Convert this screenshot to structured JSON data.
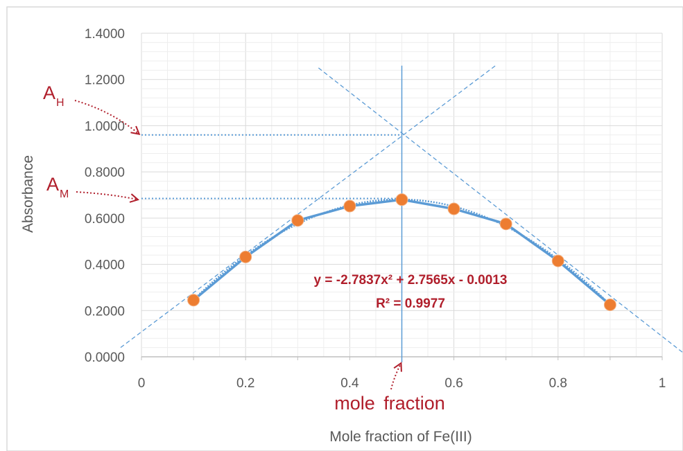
{
  "chart_data": {
    "type": "scatter",
    "xlabel": "Mole fraction of Fe(III)",
    "ylabel": "Absorbance",
    "xlim": [
      0,
      1
    ],
    "ylim": [
      0,
      1.4
    ],
    "x_ticks": [
      "0",
      "0.2",
      "0.4",
      "0.6",
      "0.8",
      "1"
    ],
    "y_ticks": [
      "0.0000",
      "0.2000",
      "0.4000",
      "0.6000",
      "0.8000",
      "1.0000",
      "1.2000",
      "1.4000"
    ],
    "grid": true,
    "points": [
      {
        "x": 0.1,
        "y": 0.245
      },
      {
        "x": 0.2,
        "y": 0.432
      },
      {
        "x": 0.3,
        "y": 0.59
      },
      {
        "x": 0.4,
        "y": 0.652
      },
      {
        "x": 0.5,
        "y": 0.68
      },
      {
        "x": 0.6,
        "y": 0.64
      },
      {
        "x": 0.7,
        "y": 0.575
      },
      {
        "x": 0.8,
        "y": 0.415
      },
      {
        "x": 0.9,
        "y": 0.225
      }
    ],
    "trendline": {
      "type": "polynomial",
      "coefficients": {
        "a": -2.7837,
        "b": 2.7565,
        "c": -0.0013
      },
      "equation": "y = -2.7837x² + 2.7565x - 0.0013",
      "r_squared": "R² = 0.9977"
    },
    "guides": {
      "vertical_x": 0.5,
      "A_H": 0.96,
      "A_M": 0.685,
      "left_tangent": [
        {
          "x": -0.04,
          "y": 0.04
        },
        {
          "x": 0.68,
          "y": 1.26
        }
      ],
      "right_tangent": [
        {
          "x": 0.34,
          "y": 1.25
        },
        {
          "x": 1.05,
          "y": 0.0
        }
      ]
    },
    "annotations": {
      "A_H_label": "A",
      "A_H_sub": "H",
      "A_M_label": "A",
      "A_M_sub": "M",
      "mole_word": "mole",
      "fraction_word": "fraction"
    },
    "colors": {
      "marker": "#ed7d31",
      "curve": "#5b9bd5",
      "guide": "#5b9bd5",
      "annotation": "#b01e2b",
      "grid": "#d9d9d9"
    }
  }
}
